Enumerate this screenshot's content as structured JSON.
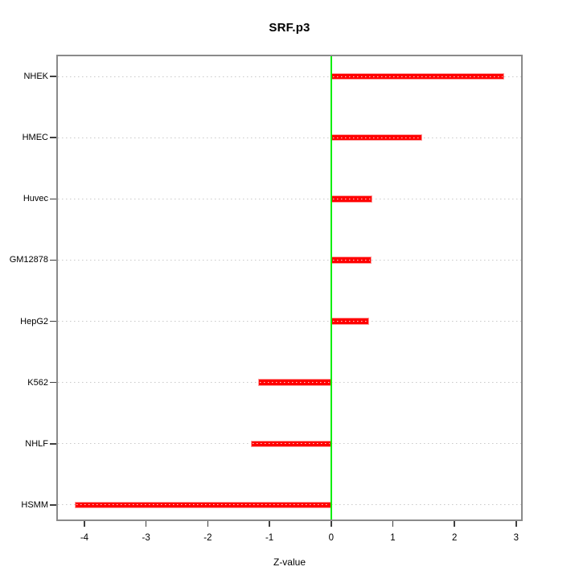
{
  "chart_data": {
    "type": "bar",
    "orientation": "horizontal",
    "title": "SRF.p3",
    "xlabel": "Z-value",
    "ylabel": "",
    "categories": [
      "NHEK",
      "HMEC",
      "Huvec",
      "GM12878",
      "HepG2",
      "K562",
      "NHLF",
      "HSMM"
    ],
    "values": [
      2.81,
      1.48,
      0.67,
      0.66,
      0.62,
      -1.18,
      -1.3,
      -4.16
    ],
    "xlim": [
      -4.43,
      3.08
    ],
    "xticks": [
      -4,
      -3,
      -2,
      -1,
      0,
      1,
      2,
      3
    ],
    "xtick_labels": [
      "-4",
      "-3",
      "-2",
      "-1",
      "0",
      "1",
      "2",
      "3"
    ],
    "baseline": 0,
    "zero_line": true,
    "grid": "horizontal-dotted",
    "legend": "none",
    "colors": {
      "bar": "#ff0000",
      "bar_edge": "#ff9d9d",
      "zero_line": "#00ee00",
      "grid": "#c9c9c9",
      "box": "#8a8a8a",
      "tick": "#3f3f3f",
      "text": "#000000",
      "background": "#ffffff"
    }
  }
}
